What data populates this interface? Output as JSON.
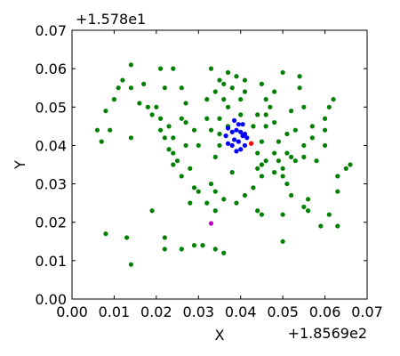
{
  "chart_data": {
    "type": "scatter",
    "title": "",
    "xlabel": "X",
    "ylabel": "Y",
    "x_offset_label": "+1.8569e2",
    "y_offset_label": "+1.578e1",
    "xlim": [
      0.0,
      0.07
    ],
    "ylim": [
      0.0,
      0.07
    ],
    "x_ticks": [
      0.0,
      0.01,
      0.02,
      0.03,
      0.04,
      0.05,
      0.06,
      0.07
    ],
    "y_ticks": [
      0.0,
      0.01,
      0.02,
      0.03,
      0.04,
      0.05,
      0.06,
      0.07
    ],
    "x_tick_labels": [
      "0.00",
      "0.01",
      "0.02",
      "0.03",
      "0.04",
      "0.05",
      "0.06",
      "0.07"
    ],
    "y_tick_labels": [
      "0.00",
      "0.01",
      "0.02",
      "0.03",
      "0.04",
      "0.05",
      "0.06",
      "0.07"
    ],
    "grid": false,
    "legend": "none",
    "series": [
      {
        "color": "#008000",
        "points": [
          [
            0.014,
            0.061
          ],
          [
            0.021,
            0.06
          ],
          [
            0.024,
            0.06
          ],
          [
            0.033,
            0.06
          ],
          [
            0.037,
            0.059
          ],
          [
            0.039,
            0.058
          ],
          [
            0.041,
            0.057
          ],
          [
            0.045,
            0.056
          ],
          [
            0.05,
            0.059
          ],
          [
            0.054,
            0.058
          ],
          [
            0.012,
            0.057
          ],
          [
            0.011,
            0.055
          ],
          [
            0.014,
            0.055
          ],
          [
            0.017,
            0.056
          ],
          [
            0.022,
            0.055
          ],
          [
            0.026,
            0.055
          ],
          [
            0.036,
            0.056
          ],
          [
            0.038,
            0.055
          ],
          [
            0.034,
            0.054
          ],
          [
            0.035,
            0.057
          ],
          [
            0.041,
            0.054
          ],
          [
            0.048,
            0.054
          ],
          [
            0.054,
            0.055
          ],
          [
            0.01,
            0.052
          ],
          [
            0.008,
            0.049
          ],
          [
            0.016,
            0.051
          ],
          [
            0.018,
            0.05
          ],
          [
            0.02,
            0.05
          ],
          [
            0.019,
            0.048
          ],
          [
            0.021,
            0.047
          ],
          [
            0.027,
            0.051
          ],
          [
            0.032,
            0.052
          ],
          [
            0.036,
            0.052
          ],
          [
            0.037,
            0.05
          ],
          [
            0.04,
            0.052
          ],
          [
            0.046,
            0.052
          ],
          [
            0.047,
            0.05
          ],
          [
            0.052,
            0.049
          ],
          [
            0.055,
            0.05
          ],
          [
            0.062,
            0.052
          ],
          [
            0.061,
            0.05
          ],
          [
            0.026,
            0.047
          ],
          [
            0.027,
            0.046
          ],
          [
            0.032,
            0.047
          ],
          [
            0.035,
            0.047
          ],
          [
            0.04,
            0.048
          ],
          [
            0.044,
            0.048
          ],
          [
            0.046,
            0.048
          ],
          [
            0.023,
            0.045
          ],
          [
            0.021,
            0.044
          ],
          [
            0.024,
            0.042
          ],
          [
            0.022,
            0.042
          ],
          [
            0.029,
            0.044
          ],
          [
            0.033,
            0.044
          ],
          [
            0.037,
            0.045
          ],
          [
            0.043,
            0.045
          ],
          [
            0.046,
            0.045
          ],
          [
            0.048,
            0.046
          ],
          [
            0.051,
            0.043
          ],
          [
            0.053,
            0.044
          ],
          [
            0.057,
            0.045
          ],
          [
            0.06,
            0.047
          ],
          [
            0.06,
            0.044
          ],
          [
            0.057,
            0.042
          ],
          [
            0.006,
            0.044
          ],
          [
            0.009,
            0.044
          ],
          [
            0.007,
            0.041
          ],
          [
            0.014,
            0.042
          ],
          [
            0.024,
            0.038
          ],
          [
            0.027,
            0.04
          ],
          [
            0.03,
            0.04
          ],
          [
            0.035,
            0.043
          ],
          [
            0.035,
            0.04
          ],
          [
            0.045,
            0.041
          ],
          [
            0.049,
            0.041
          ],
          [
            0.055,
            0.04
          ],
          [
            0.051,
            0.038
          ],
          [
            0.052,
            0.037
          ],
          [
            0.023,
            0.039
          ],
          [
            0.025,
            0.036
          ],
          [
            0.034,
            0.037
          ],
          [
            0.044,
            0.038
          ],
          [
            0.046,
            0.036
          ],
          [
            0.048,
            0.038
          ],
          [
            0.049,
            0.036
          ],
          [
            0.053,
            0.036
          ],
          [
            0.055,
            0.037
          ],
          [
            0.058,
            0.036
          ],
          [
            0.06,
            0.04
          ],
          [
            0.024,
            0.035
          ],
          [
            0.028,
            0.034
          ],
          [
            0.044,
            0.034
          ],
          [
            0.045,
            0.035
          ],
          [
            0.048,
            0.033
          ],
          [
            0.05,
            0.034
          ],
          [
            0.065,
            0.034
          ],
          [
            0.066,
            0.035
          ],
          [
            0.026,
            0.032
          ],
          [
            0.038,
            0.033
          ],
          [
            0.045,
            0.032
          ],
          [
            0.05,
            0.032
          ],
          [
            0.063,
            0.032
          ],
          [
            0.029,
            0.029
          ],
          [
            0.033,
            0.03
          ],
          [
            0.043,
            0.029
          ],
          [
            0.041,
            0.027
          ],
          [
            0.051,
            0.03
          ],
          [
            0.03,
            0.028
          ],
          [
            0.034,
            0.028
          ],
          [
            0.028,
            0.025
          ],
          [
            0.032,
            0.025
          ],
          [
            0.036,
            0.026
          ],
          [
            0.039,
            0.025
          ],
          [
            0.052,
            0.027
          ],
          [
            0.056,
            0.026
          ],
          [
            0.063,
            0.028
          ],
          [
            0.019,
            0.023
          ],
          [
            0.034,
            0.023
          ],
          [
            0.044,
            0.023
          ],
          [
            0.045,
            0.022
          ],
          [
            0.05,
            0.022
          ],
          [
            0.055,
            0.024
          ],
          [
            0.056,
            0.023
          ],
          [
            0.061,
            0.022
          ],
          [
            0.059,
            0.019
          ],
          [
            0.063,
            0.019
          ],
          [
            0.022,
            0.016
          ],
          [
            0.008,
            0.017
          ],
          [
            0.013,
            0.016
          ],
          [
            0.022,
            0.013
          ],
          [
            0.026,
            0.013
          ],
          [
            0.029,
            0.014
          ],
          [
            0.031,
            0.014
          ],
          [
            0.034,
            0.013
          ],
          [
            0.05,
            0.015
          ],
          [
            0.014,
            0.009
          ],
          [
            0.036,
            0.012
          ]
        ]
      },
      {
        "color": "#0000ff",
        "points": [
          [
            0.0385,
            0.0465
          ],
          [
            0.0395,
            0.0455
          ],
          [
            0.0405,
            0.0455
          ],
          [
            0.037,
            0.0445
          ],
          [
            0.0365,
            0.0425
          ],
          [
            0.038,
            0.0435
          ],
          [
            0.039,
            0.044
          ],
          [
            0.04,
            0.0435
          ],
          [
            0.041,
            0.043
          ],
          [
            0.0415,
            0.042
          ],
          [
            0.037,
            0.0405
          ],
          [
            0.038,
            0.04
          ],
          [
            0.0395,
            0.041
          ],
          [
            0.041,
            0.04
          ],
          [
            0.04,
            0.039
          ],
          [
            0.039,
            0.0385
          ],
          [
            0.0405,
            0.0425
          ],
          [
            0.0385,
            0.0415
          ]
        ]
      },
      {
        "color": "#ff0000",
        "points": [
          [
            0.0425,
            0.0405
          ]
        ]
      },
      {
        "color": "#bf00bf",
        "points": [
          [
            0.033,
            0.0197
          ]
        ]
      }
    ]
  }
}
